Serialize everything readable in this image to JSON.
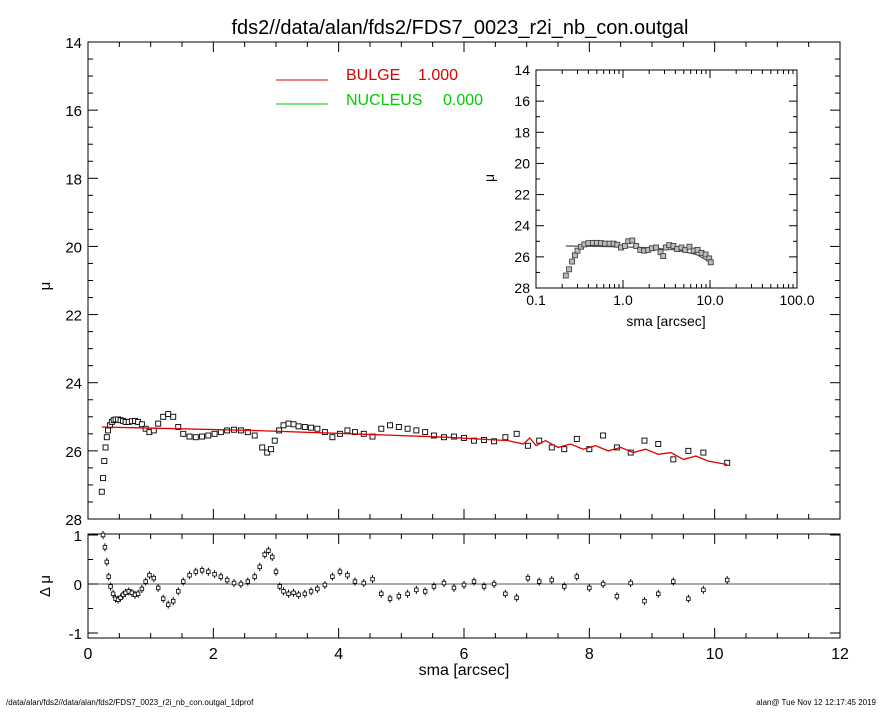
{
  "title": "fds2//data/alan/fds2/FDS7_0023_r2i_nb_con.outgal",
  "footer_left": "/data/alan/fds2//data/alan/fds2/FDS7_0023_r2i_nb_con.outgal_1dprof",
  "footer_right": "alan@  Tue Nov 12 12:17:45 2019",
  "colors": {
    "bulge": "#dd0000",
    "nucleus": "#00cc00",
    "data": "#000000",
    "model_inset": "#555555"
  },
  "chart_data": [
    {
      "id": "main",
      "type": "scatter",
      "xlabel": "",
      "ylabel": "μ",
      "xlim": [
        0,
        12
      ],
      "ylim": [
        28,
        14
      ],
      "y_inverted": true,
      "yticks": [
        "14",
        "16",
        "18",
        "20",
        "22",
        "24",
        "26",
        "28"
      ],
      "legend": {
        "position": "top-center",
        "entries": [
          {
            "name": "BULGE",
            "value": "1.000",
            "color": "#dd0000"
          },
          {
            "name": "NUCLEUS",
            "value": "0.000",
            "color": "#00cc00"
          }
        ]
      },
      "series": [
        {
          "name": "data",
          "style": "open-square",
          "x": [
            0.22,
            0.24,
            0.26,
            0.28,
            0.3,
            0.32,
            0.35,
            0.38,
            0.41,
            0.44,
            0.48,
            0.52,
            0.56,
            0.6,
            0.65,
            0.7,
            0.75,
            0.8,
            0.86,
            0.92,
            0.98,
            1.05,
            1.12,
            1.2,
            1.28,
            1.36,
            1.44,
            1.52,
            1.62,
            1.72,
            1.82,
            1.92,
            2.02,
            2.12,
            2.22,
            2.33,
            2.44,
            2.55,
            2.66,
            2.78,
            2.86,
            2.92,
            2.98,
            3.05,
            3.12,
            3.2,
            3.28,
            3.36,
            3.46,
            3.56,
            3.66,
            3.78,
            3.9,
            4.02,
            4.14,
            4.26,
            4.4,
            4.54,
            4.68,
            4.82,
            4.96,
            5.1,
            5.24,
            5.38,
            5.52,
            5.68,
            5.84,
            6.0,
            6.16,
            6.32,
            6.48,
            6.66,
            6.84,
            7.02,
            7.2,
            7.4,
            7.6,
            7.8,
            8.0,
            8.22,
            8.44,
            8.66,
            8.88,
            9.1,
            9.34,
            9.58,
            9.82,
            10.2
          ],
          "y": [
            27.2,
            26.8,
            26.3,
            25.9,
            25.6,
            25.4,
            25.25,
            25.15,
            25.1,
            25.08,
            25.08,
            25.1,
            25.12,
            25.15,
            25.15,
            25.13,
            25.12,
            25.15,
            25.22,
            25.35,
            25.45,
            25.4,
            25.2,
            25.0,
            24.92,
            25.0,
            25.3,
            25.5,
            25.58,
            25.6,
            25.58,
            25.55,
            25.5,
            25.45,
            25.4,
            25.38,
            25.4,
            25.45,
            25.55,
            25.9,
            26.05,
            25.95,
            25.7,
            25.4,
            25.25,
            25.2,
            25.22,
            25.28,
            25.3,
            25.32,
            25.35,
            25.45,
            25.6,
            25.5,
            25.4,
            25.45,
            25.5,
            25.58,
            25.35,
            25.25,
            25.3,
            25.35,
            25.4,
            25.45,
            25.55,
            25.6,
            25.58,
            25.62,
            25.7,
            25.68,
            25.72,
            25.6,
            25.5,
            25.85,
            25.7,
            25.9,
            25.95,
            25.65,
            25.95,
            25.55,
            25.9,
            26.05,
            25.7,
            25.8,
            26.25,
            26.0,
            26.05,
            26.35
          ]
        },
        {
          "name": "BULGE",
          "style": "line",
          "color": "#dd0000",
          "x": [
            0.22,
            2.6,
            4.2,
            5.7,
            6.7,
            6.95,
            7.05,
            7.15,
            7.3,
            7.5,
            7.7,
            7.9,
            8.1,
            8.3,
            8.5,
            8.7,
            8.9,
            9.1,
            9.3,
            9.5,
            9.7,
            9.9,
            10.2
          ],
          "y": [
            25.3,
            25.4,
            25.5,
            25.6,
            25.7,
            25.8,
            25.62,
            25.85,
            25.7,
            25.9,
            25.8,
            25.95,
            25.85,
            26.0,
            25.9,
            26.05,
            25.95,
            26.1,
            26.05,
            26.25,
            26.15,
            26.3,
            26.4
          ]
        }
      ]
    },
    {
      "id": "residual",
      "type": "scatter",
      "xlabel": "sma [arcsec]",
      "ylabel": "Δ μ",
      "xlim": [
        0,
        12
      ],
      "ylim": [
        -1,
        1
      ],
      "xticks": [
        "0",
        "2",
        "4",
        "6",
        "8",
        "10",
        "12"
      ],
      "yticks": [
        "-1",
        "0",
        "1"
      ],
      "zero_line": true,
      "series": [
        {
          "name": "residuals",
          "style": "error-bar",
          "x": [
            0.24,
            0.27,
            0.3,
            0.33,
            0.36,
            0.4,
            0.44,
            0.48,
            0.52,
            0.56,
            0.6,
            0.65,
            0.7,
            0.75,
            0.8,
            0.86,
            0.92,
            0.98,
            1.05,
            1.12,
            1.2,
            1.28,
            1.36,
            1.44,
            1.52,
            1.62,
            1.72,
            1.82,
            1.92,
            2.02,
            2.12,
            2.22,
            2.33,
            2.44,
            2.55,
            2.66,
            2.74,
            2.82,
            2.88,
            2.94,
            3.0,
            3.06,
            3.12,
            3.2,
            3.28,
            3.36,
            3.46,
            3.56,
            3.66,
            3.78,
            3.9,
            4.02,
            4.14,
            4.26,
            4.4,
            4.54,
            4.68,
            4.82,
            4.96,
            5.1,
            5.24,
            5.38,
            5.52,
            5.68,
            5.84,
            6.0,
            6.16,
            6.32,
            6.48,
            6.66,
            6.84,
            7.02,
            7.2,
            7.4,
            7.6,
            7.8,
            8.0,
            8.22,
            8.44,
            8.66,
            8.88,
            9.1,
            9.34,
            9.58,
            9.82,
            10.2
          ],
          "y": [
            1.0,
            0.75,
            0.45,
            0.15,
            -0.05,
            -0.2,
            -0.3,
            -0.32,
            -0.28,
            -0.22,
            -0.18,
            -0.15,
            -0.18,
            -0.22,
            -0.2,
            -0.1,
            0.05,
            0.18,
            0.12,
            -0.08,
            -0.3,
            -0.42,
            -0.35,
            -0.15,
            0.05,
            0.18,
            0.25,
            0.28,
            0.25,
            0.2,
            0.15,
            0.08,
            0.02,
            0.0,
            0.05,
            0.15,
            0.35,
            0.6,
            0.68,
            0.55,
            0.25,
            -0.05,
            -0.15,
            -0.2,
            -0.18,
            -0.22,
            -0.2,
            -0.15,
            -0.1,
            -0.02,
            0.15,
            0.25,
            0.18,
            0.05,
            0.02,
            0.1,
            -0.2,
            -0.3,
            -0.25,
            -0.2,
            -0.12,
            -0.15,
            -0.05,
            0.02,
            -0.08,
            -0.02,
            0.05,
            -0.05,
            0.0,
            -0.2,
            -0.28,
            0.12,
            0.05,
            0.08,
            -0.05,
            0.15,
            -0.08,
            0.0,
            -0.25,
            0.02,
            -0.35,
            -0.2,
            0.05,
            -0.3,
            -0.12,
            0.08
          ]
        }
      ]
    },
    {
      "id": "inset",
      "type": "scatter",
      "xscale": "log",
      "xlabel": "sma [arcsec]",
      "ylabel": "μ",
      "xlim": [
        0.1,
        100
      ],
      "ylim": [
        28,
        14
      ],
      "y_inverted": true,
      "xticks": [
        "0.1",
        "1.0",
        "10.0",
        "100.0"
      ],
      "yticks": [
        "14",
        "16",
        "18",
        "20",
        "22",
        "24",
        "26",
        "28"
      ],
      "series": [
        {
          "name": "data",
          "style": "open-square",
          "x": [
            0.22,
            0.24,
            0.26,
            0.28,
            0.3,
            0.33,
            0.36,
            0.4,
            0.45,
            0.5,
            0.56,
            0.62,
            0.7,
            0.78,
            0.86,
            0.95,
            1.05,
            1.15,
            1.28,
            1.42,
            1.58,
            1.75,
            1.95,
            2.15,
            2.4,
            2.7,
            2.9,
            3.1,
            3.4,
            3.8,
            4.2,
            4.7,
            5.2,
            5.8,
            6.5,
            7.2,
            8.0,
            8.9,
            9.8,
            10.2
          ],
          "y": [
            27.2,
            26.8,
            26.3,
            25.9,
            25.6,
            25.35,
            25.2,
            25.12,
            25.1,
            25.1,
            25.12,
            25.15,
            25.15,
            25.15,
            25.22,
            25.4,
            25.3,
            25.0,
            24.95,
            25.3,
            25.55,
            25.6,
            25.55,
            25.45,
            25.4,
            25.7,
            25.95,
            25.4,
            25.25,
            25.3,
            25.5,
            25.4,
            25.55,
            25.35,
            25.6,
            25.55,
            25.75,
            25.85,
            26.1,
            26.35
          ]
        },
        {
          "name": "model",
          "style": "line",
          "color": "#555555",
          "x": [
            0.22,
            0.5,
            1.0,
            2.0,
            4.0,
            7.0,
            10.2
          ],
          "y": [
            25.3,
            25.32,
            25.36,
            25.42,
            25.55,
            25.85,
            26.35
          ]
        }
      ]
    }
  ]
}
